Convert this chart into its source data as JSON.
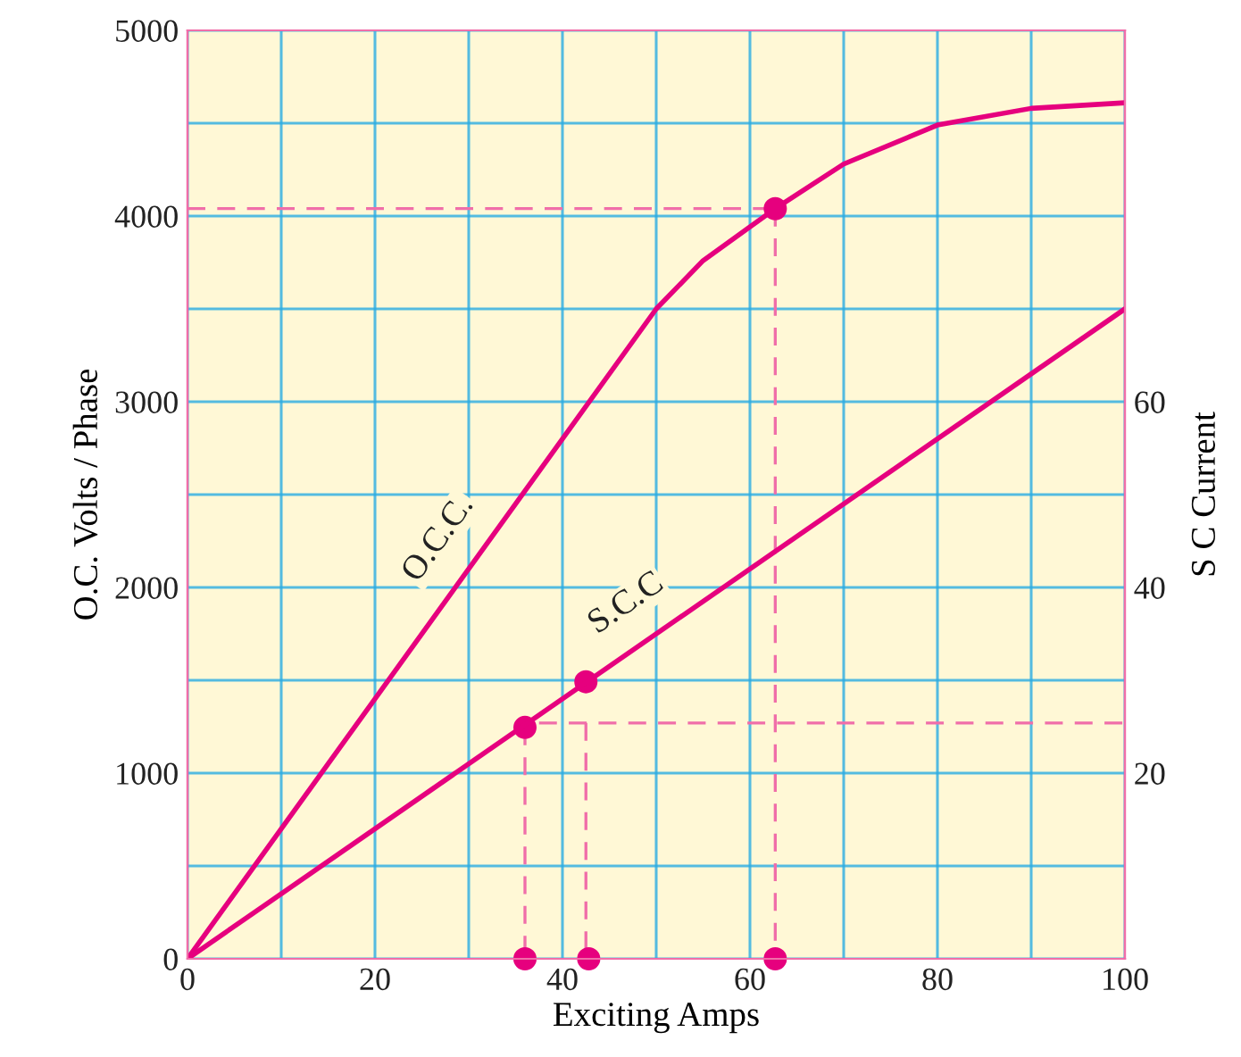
{
  "chart_data": {
    "type": "line",
    "xlabel": "Exciting Amps",
    "ylabel": "O.C. Volts / Phase",
    "y2label": "S C Current",
    "xlim": [
      0,
      100
    ],
    "xticks": [
      0,
      {
        "value": 10,
        "label": null
      },
      20,
      {
        "value": 30,
        "label": null
      },
      40,
      {
        "value": 50,
        "label": null
      },
      60,
      {
        "value": 70,
        "label": null
      },
      80,
      {
        "value": 90,
        "label": null
      },
      100
    ],
    "ylim": [
      0,
      5000
    ],
    "yticks": [
      0,
      {
        "value": 500,
        "label": null
      },
      1000,
      {
        "value": 1500,
        "label": null
      },
      2000,
      {
        "value": 2500,
        "label": null
      },
      3000,
      {
        "value": 3500,
        "label": null
      },
      4000,
      {
        "value": 4500,
        "label": null
      },
      5000
    ],
    "y2lim": [
      0,
      100
    ],
    "y2ticks": [
      20,
      40,
      60
    ],
    "grid": true,
    "series": [
      {
        "name": "O.C.C.",
        "color": "#e6007e",
        "x": [
          0,
          50,
          55,
          62.7,
          70,
          80,
          90,
          100
        ],
        "values": [
          0,
          3500,
          3760,
          4040,
          4280,
          4490,
          4580,
          4610
        ]
      },
      {
        "name": "S.C.C",
        "color": "#e6007e",
        "axis": "y2",
        "x": [
          0,
          100
        ],
        "values": [
          0,
          70
        ]
      },
      {
        "type": "line",
        "line_style": "dashed",
        "color": "#f06ea9",
        "x": [
          0,
          62.7
        ],
        "values": [
          4040,
          4040
        ]
      },
      {
        "type": "line",
        "line_style": "dashed",
        "color": "#f06ea9",
        "x": [
          62.7,
          62.7
        ],
        "values": [
          4040,
          0
        ]
      },
      {
        "type": "line",
        "line_style": "dashed",
        "color": "#f06ea9",
        "x": [
          36,
          36
        ],
        "values": [
          1246,
          0
        ]
      },
      {
        "type": "line",
        "line_style": "dashed",
        "color": "#f06ea9",
        "x": [
          37.5,
          100
        ],
        "values": [
          1270,
          1270
        ]
      },
      {
        "type": "line",
        "line_style": "dashed",
        "color": "#f06ea9",
        "x": [
          42.5,
          42.5
        ],
        "values": [
          1270,
          0
        ]
      },
      {
        "type": "scatter",
        "marker": "circle",
        "color": "#e6007e",
        "x": [
          36,
          42.5,
          62.7,
          36,
          42.8,
          62.7
        ],
        "values": [
          1246,
          1492,
          4040,
          0,
          0,
          0
        ]
      }
    ]
  }
}
